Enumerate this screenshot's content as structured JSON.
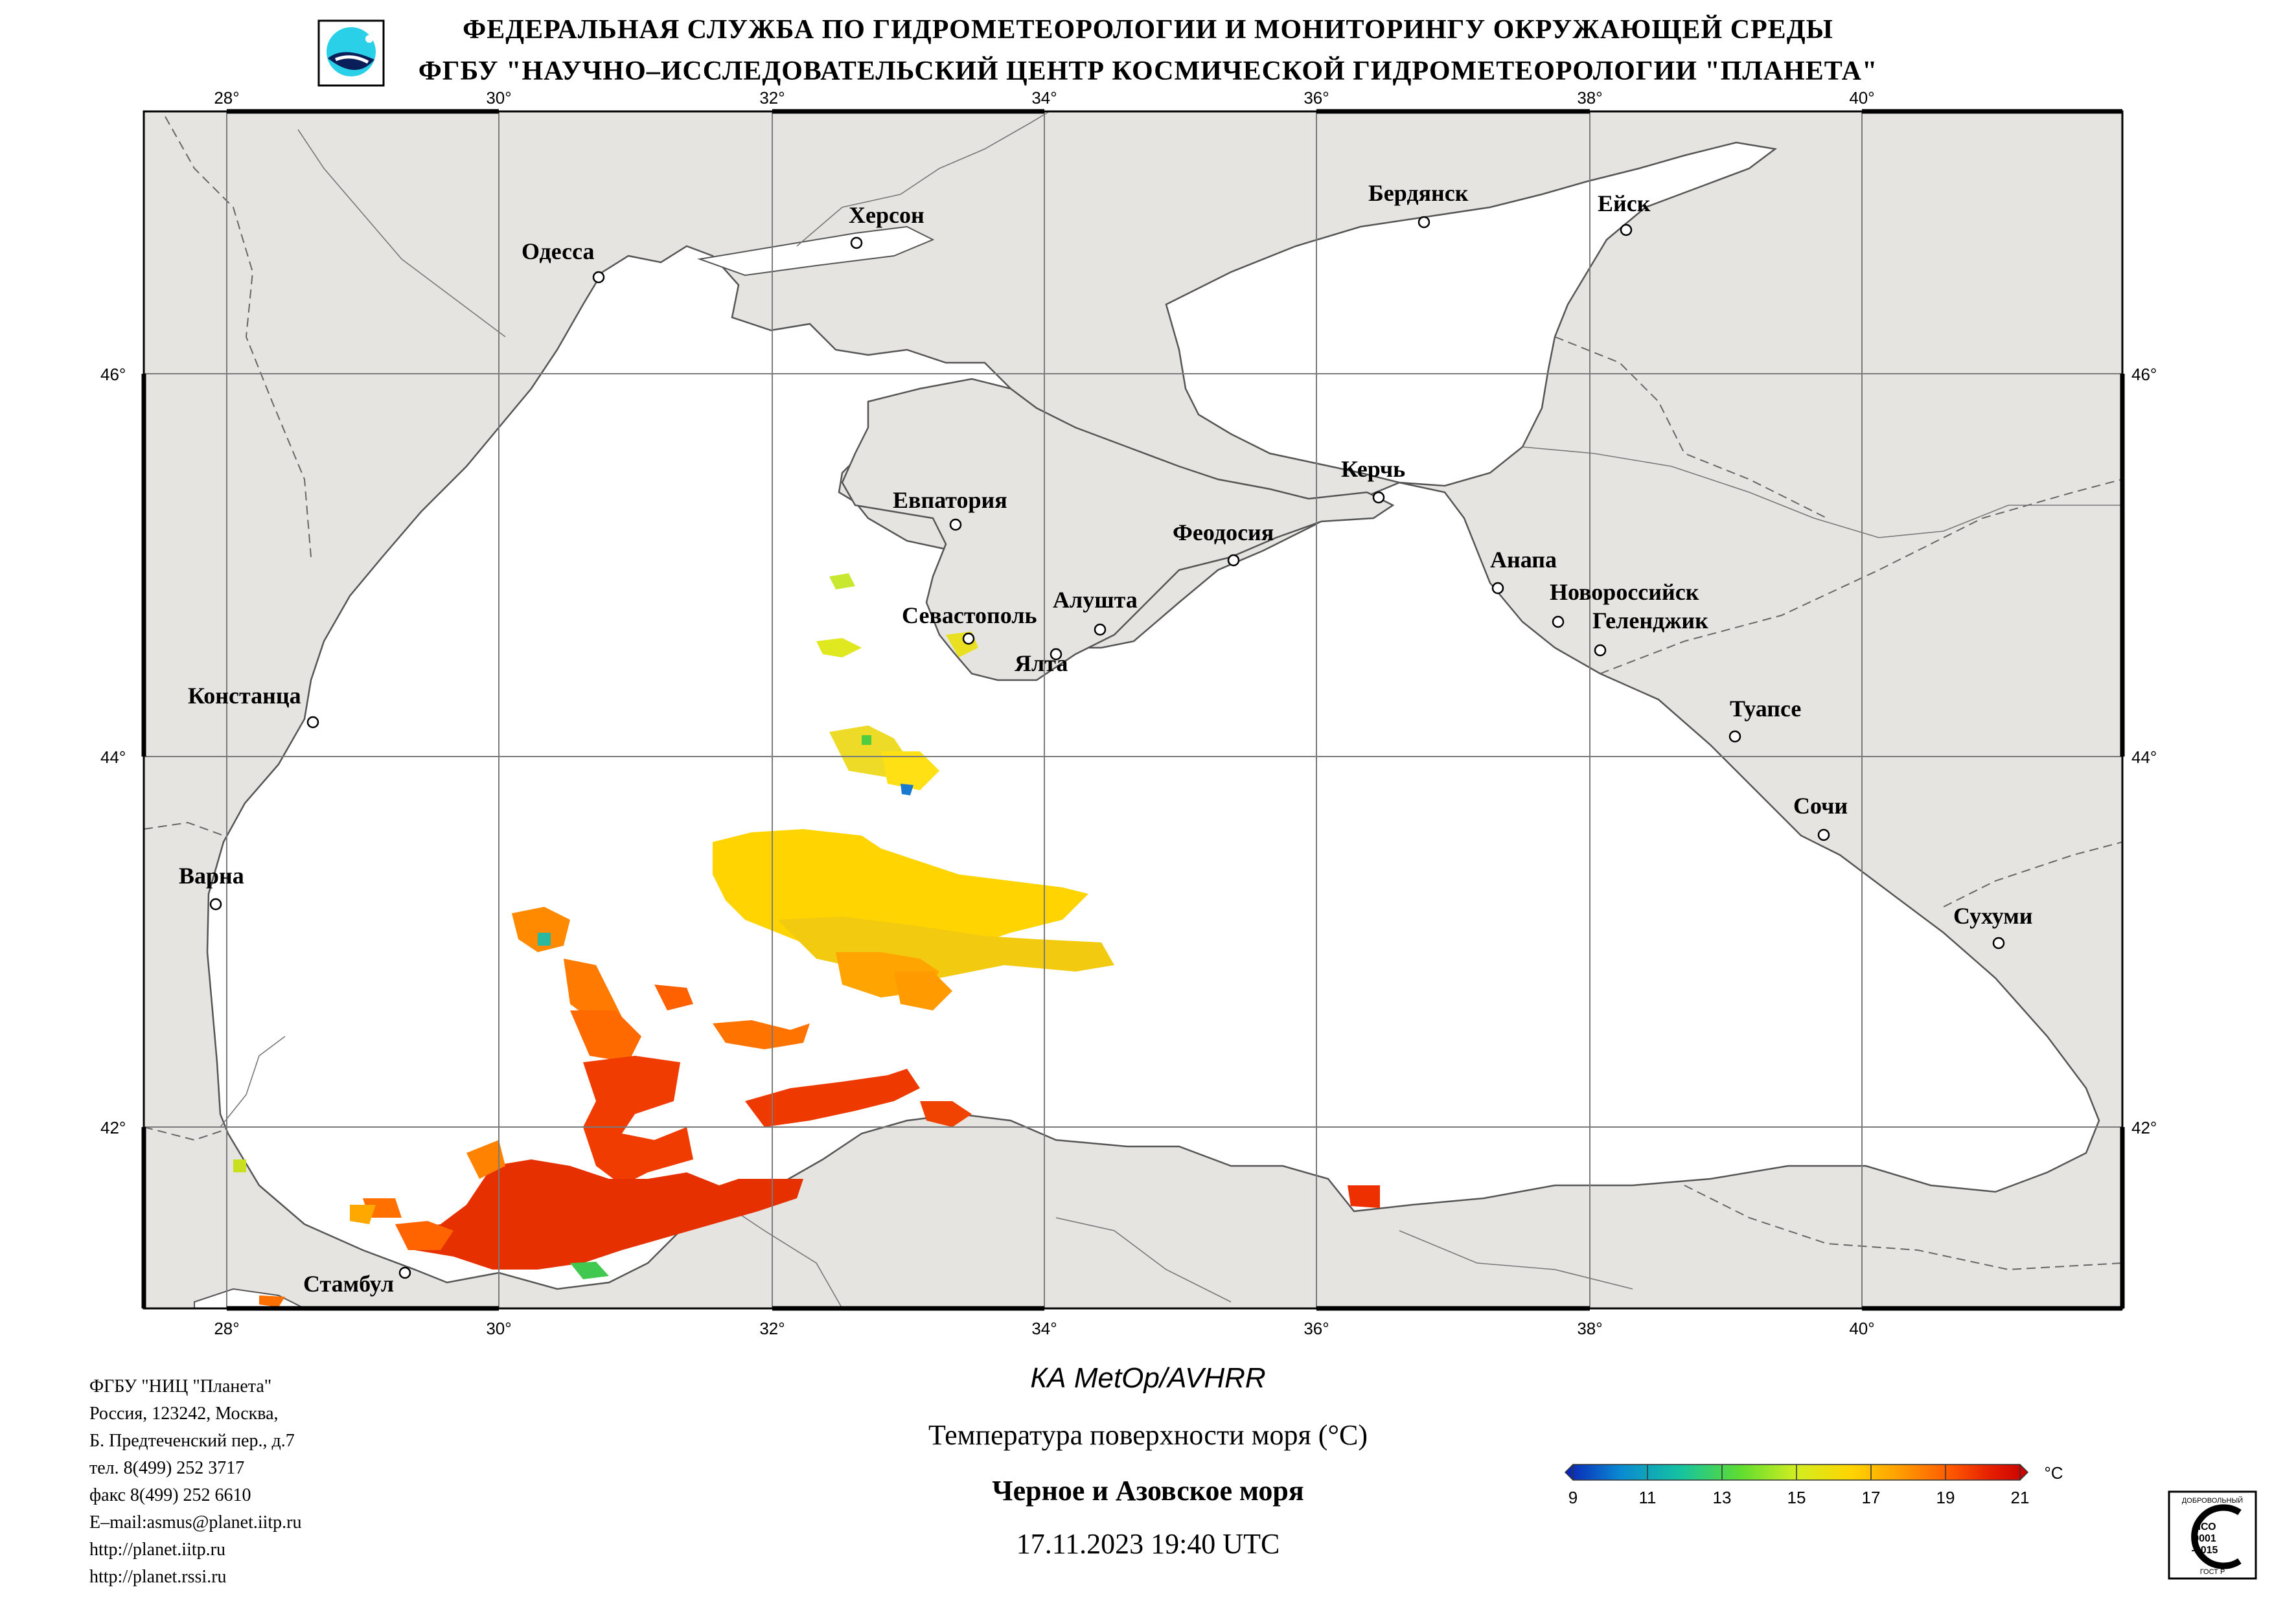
{
  "header": {
    "line1": "ФЕДЕРАЛЬНАЯ СЛУЖБА ПО ГИДРОМЕТЕОРОЛОГИИ И МОНИТОРИНГУ ОКРУЖАЮЩЕЙ СРЕДЫ",
    "line2": "ФГБУ \"НАУЧНО–ИССЛЕДОВАТЕЛЬСКИЙ ЦЕНТР КОСМИЧЕСКОЙ ГИДРОМЕТЕОРОЛОГИИ \"ПЛАНЕТА\""
  },
  "map": {
    "lon_labels": [
      "28°",
      "30°",
      "32°",
      "34°",
      "36°",
      "38°",
      "40°"
    ],
    "lat_labels": [
      "46°",
      "44°",
      "42°"
    ],
    "colors": {
      "land": "#e6e4e1",
      "sea": "#ffffff",
      "grid": "#7a7a7a",
      "coast": "#555555"
    },
    "cities": [
      {
        "name": "Одесса",
        "lon": 30.73,
        "lat": 46.48
      },
      {
        "name": "Херсон",
        "lon": 32.62,
        "lat": 46.64
      },
      {
        "name": "Бердянск",
        "lon": 36.79,
        "lat": 46.75
      },
      {
        "name": "Ейск",
        "lon": 38.27,
        "lat": 46.71
      },
      {
        "name": "Евпатория",
        "lon": 33.37,
        "lat": 45.19
      },
      {
        "name": "Керчь",
        "lon": 36.47,
        "lat": 45.36
      },
      {
        "name": "Феодосия",
        "lon": 35.38,
        "lat": 45.03
      },
      {
        "name": "Анапа",
        "lon": 37.32,
        "lat": 44.89
      },
      {
        "name": "Новороссийск",
        "lon": 37.77,
        "lat": 44.72
      },
      {
        "name": "Геленджик",
        "lon": 38.07,
        "lat": 44.56
      },
      {
        "name": "Севастополь",
        "lon": 33.52,
        "lat": 44.6
      },
      {
        "name": "Алушта",
        "lon": 34.41,
        "lat": 44.67
      },
      {
        "name": "Ялта",
        "lon": 34.17,
        "lat": 44.5
      },
      {
        "name": "Констанца",
        "lon": 28.64,
        "lat": 44.17
      },
      {
        "name": "Туапсе",
        "lon": 39.07,
        "lat": 44.1
      },
      {
        "name": "Сочи",
        "lon": 39.72,
        "lat": 43.59
      },
      {
        "name": "Варна",
        "lon": 27.92,
        "lat": 43.2
      },
      {
        "name": "Сухуми",
        "lon": 41.01,
        "lat": 43.0
      },
      {
        "name": "Стамбул",
        "lon": 28.98,
        "lat": 41.05
      }
    ]
  },
  "legend": {
    "ticks": [
      "9",
      "11",
      "13",
      "15",
      "17",
      "19",
      "21"
    ],
    "unit": "°C",
    "colors": [
      "#0a1fb4",
      "#0a8ad2",
      "#15c3a0",
      "#60dd30",
      "#d2ee20",
      "#ffd400",
      "#ff9f00",
      "#ff5a00",
      "#e61e00",
      "#c80000"
    ]
  },
  "footer": {
    "satellite": "КА MetOp/AVHRR",
    "parameter": "Температура поверхности моря (°C)",
    "region": "Черное и Азовское моря",
    "datetime": "17.11.2023 19:40 UTC"
  },
  "contacts": [
    "ФГБУ \"НИЦ \"Планета\"",
    "Россия, 123242, Москва,",
    "Б. Предтеченский пер., д.7",
    "тел. 8(499) 252 3717",
    "факс 8(499) 252 6610",
    "E–mail:asmus@planet.iitp.ru",
    "http://planet.iitp.ru",
    "http://planet.rssi.ru"
  ],
  "iso_badge": {
    "top": "ДОБРОВОЛЬНЫЙ",
    "mid1": "ИСО",
    "mid2": "9001",
    "mid3": "-2015",
    "bottom": "ГОСТ Р"
  }
}
